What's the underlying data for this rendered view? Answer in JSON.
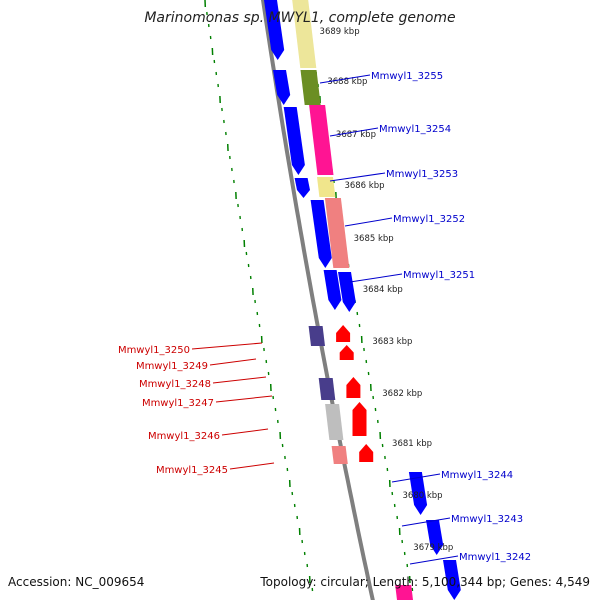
{
  "title": "Marinomonas sp. MWYL1, complete genome",
  "footer": {
    "accession": "Accession: NC_009654",
    "topology": "Topology: circular; Length: 5,100,344 bp; Genes: 4,549"
  },
  "colors": {
    "backbone": "#7f7f7f",
    "forward_gene": "#0000ff",
    "reverse_gene": "#ff0000",
    "forward_label": "#0000cc",
    "reverse_label": "#cc0000",
    "scale_dots": "#008000"
  },
  "scale_labels": [
    {
      "text": "3689 kbp",
      "position": 3689
    },
    {
      "text": "3688 kbp",
      "position": 3688
    },
    {
      "text": "3687 kbp",
      "position": 3687
    },
    {
      "text": "3686 kbp",
      "position": 3686
    },
    {
      "text": "3685 kbp",
      "position": 3685
    },
    {
      "text": "3684 kbp",
      "position": 3684
    },
    {
      "text": "3683 kbp",
      "position": 3683
    },
    {
      "text": "3682 kbp",
      "position": 3682
    },
    {
      "text": "3681 kbp",
      "position": 3681
    },
    {
      "text": "3680 kbp",
      "position": 3680
    },
    {
      "text": "3679 kbp",
      "position": 3679
    }
  ],
  "forward_genes": [
    {
      "name": "Mmwyl1_3255"
    },
    {
      "name": "Mmwyl1_3254"
    },
    {
      "name": "Mmwyl1_3253"
    },
    {
      "name": "Mmwyl1_3252"
    },
    {
      "name": "Mmwyl1_3251"
    },
    {
      "name": "Mmwyl1_3244"
    },
    {
      "name": "Mmwyl1_3243"
    },
    {
      "name": "Mmwyl1_3242"
    }
  ],
  "reverse_genes": [
    {
      "name": "Mmwyl1_3250"
    },
    {
      "name": "Mmwyl1_3249"
    },
    {
      "name": "Mmwyl1_3248"
    },
    {
      "name": "Mmwyl1_3247"
    },
    {
      "name": "Mmwyl1_3246"
    },
    {
      "name": "Mmwyl1_3245"
    }
  ]
}
